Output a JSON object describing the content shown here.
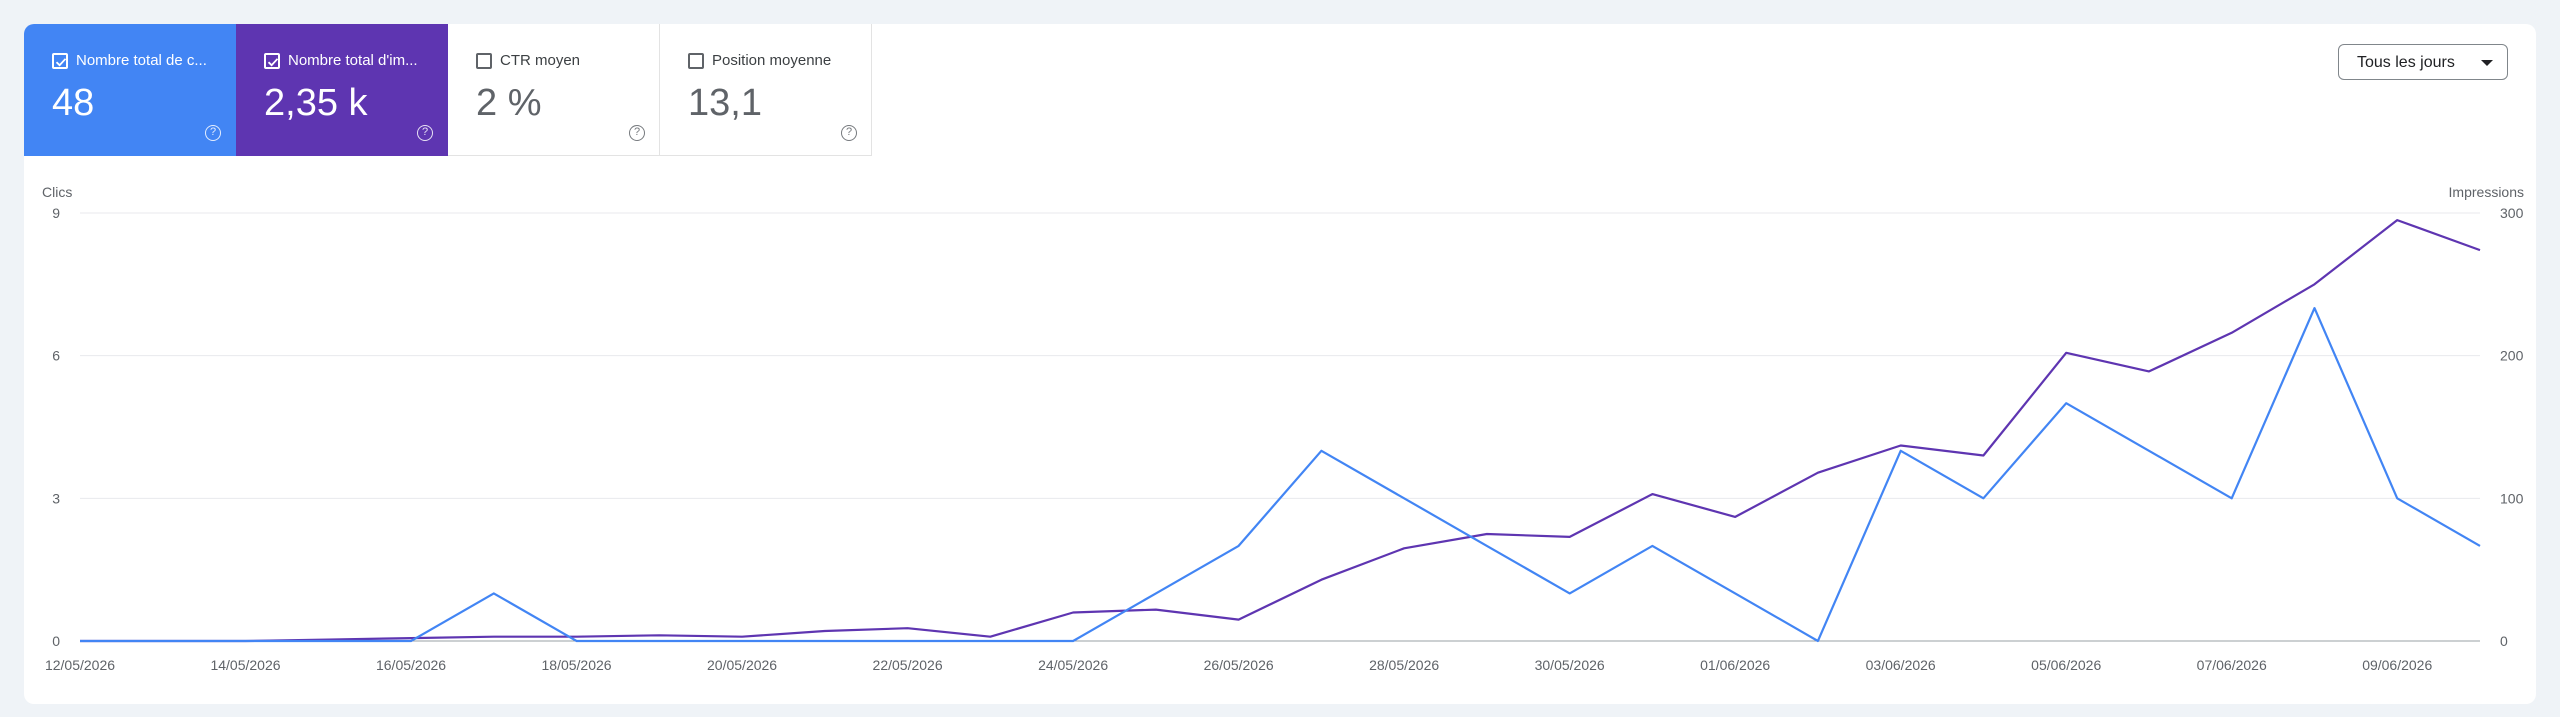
{
  "metrics": [
    {
      "label": "Nombre total de c...",
      "value": "48",
      "checked": true
    },
    {
      "label": "Nombre total d'im...",
      "value": "2,35 k",
      "checked": true
    },
    {
      "label": "CTR moyen",
      "value": "2 %",
      "checked": false
    },
    {
      "label": "Position moyenne",
      "value": "13,1",
      "checked": false
    }
  ],
  "help_glyph": "?",
  "dropdown": {
    "label": "Tous les jours"
  },
  "colors": {
    "clicks": "#4285f4",
    "impressions": "#5e35b1"
  },
  "chart_data": {
    "type": "line",
    "y_left_label": "Clics",
    "y_right_label": "Impressions",
    "y_left_range": [
      0,
      9
    ],
    "y_right_range": [
      0,
      300
    ],
    "y_left_ticks": [
      "0",
      "3",
      "6",
      "9"
    ],
    "y_right_ticks": [
      "0",
      "100",
      "200",
      "300"
    ],
    "x_tick_labels": [
      "12/05/2026",
      "14/05/2026",
      "16/05/2026",
      "18/05/2026",
      "20/05/2026",
      "22/05/2026",
      "24/05/2026",
      "26/05/2026",
      "28/05/2026",
      "30/05/2026",
      "01/06/2026",
      "03/06/2026",
      "05/06/2026",
      "07/06/2026",
      "09/06/2026"
    ],
    "x": [
      "12/05/2026",
      "13/05/2026",
      "14/05/2026",
      "15/05/2026",
      "16/05/2026",
      "17/05/2026",
      "18/05/2026",
      "19/05/2026",
      "20/05/2026",
      "21/05/2026",
      "22/05/2026",
      "23/05/2026",
      "24/05/2026",
      "25/05/2026",
      "26/05/2026",
      "27/05/2026",
      "28/05/2026",
      "29/05/2026",
      "30/05/2026",
      "31/05/2026",
      "01/06/2026",
      "02/06/2026",
      "03/06/2026",
      "04/06/2026",
      "05/06/2026",
      "06/06/2026",
      "07/06/2026",
      "08/06/2026",
      "09/06/2026",
      "10/06/2026"
    ],
    "series": [
      {
        "name": "Clics",
        "axis": "left",
        "values": [
          0,
          0,
          0,
          0,
          0,
          1,
          0,
          0,
          0,
          0,
          0,
          0,
          0,
          1,
          2,
          4,
          3,
          2,
          1,
          2,
          1,
          0,
          4,
          3,
          5,
          4,
          3,
          7,
          3,
          2
        ]
      },
      {
        "name": "Impressions",
        "axis": "right",
        "values": [
          0,
          0,
          0,
          1,
          2,
          3,
          3,
          4,
          3,
          7,
          9,
          3,
          20,
          22,
          15,
          43,
          65,
          75,
          73,
          103,
          87,
          118,
          137,
          130,
          202,
          189,
          216,
          250,
          295,
          274
        ]
      }
    ],
    "grid": true,
    "legend": "none"
  }
}
